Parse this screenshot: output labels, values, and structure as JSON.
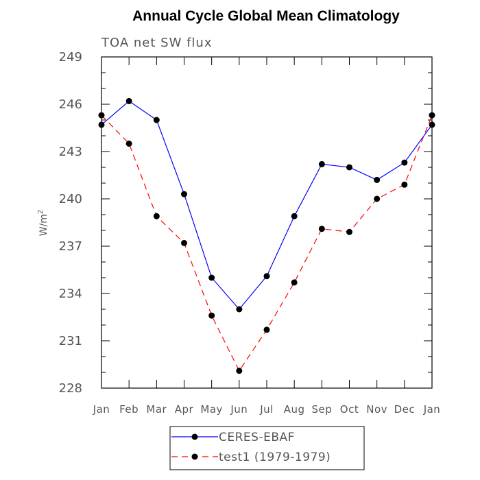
{
  "chart_data": {
    "type": "line",
    "title": "Annual Cycle Global Mean Climatology",
    "subtitle": "TOA net SW flux",
    "ylabel_main": "W/m",
    "ylabel_sup": "2",
    "xlabel": "",
    "categories": [
      "Jan",
      "Feb",
      "Mar",
      "Apr",
      "May",
      "Jun",
      "Jul",
      "Aug",
      "Sep",
      "Oct",
      "Nov",
      "Dec",
      "Jan"
    ],
    "ylim": [
      228,
      249
    ],
    "yticks": [
      228,
      231,
      234,
      237,
      240,
      243,
      246,
      249
    ],
    "grid": false,
    "legend_position": "bottom-center",
    "series": [
      {
        "name": "CERES-EBAF",
        "color": "#0000ff",
        "line_style": "solid",
        "marker": "filled-circle",
        "values": [
          244.7,
          246.2,
          245.0,
          240.3,
          235.0,
          233.0,
          235.1,
          238.9,
          242.2,
          242.0,
          241.2,
          242.3,
          244.7
        ]
      },
      {
        "name": "test1 (1979-1979)",
        "color": "#ff0000",
        "line_style": "dashed",
        "marker": "filled-circle",
        "values": [
          245.3,
          243.5,
          238.9,
          237.2,
          232.6,
          229.1,
          231.7,
          234.7,
          238.1,
          237.9,
          240.0,
          240.9,
          245.3
        ]
      }
    ]
  }
}
